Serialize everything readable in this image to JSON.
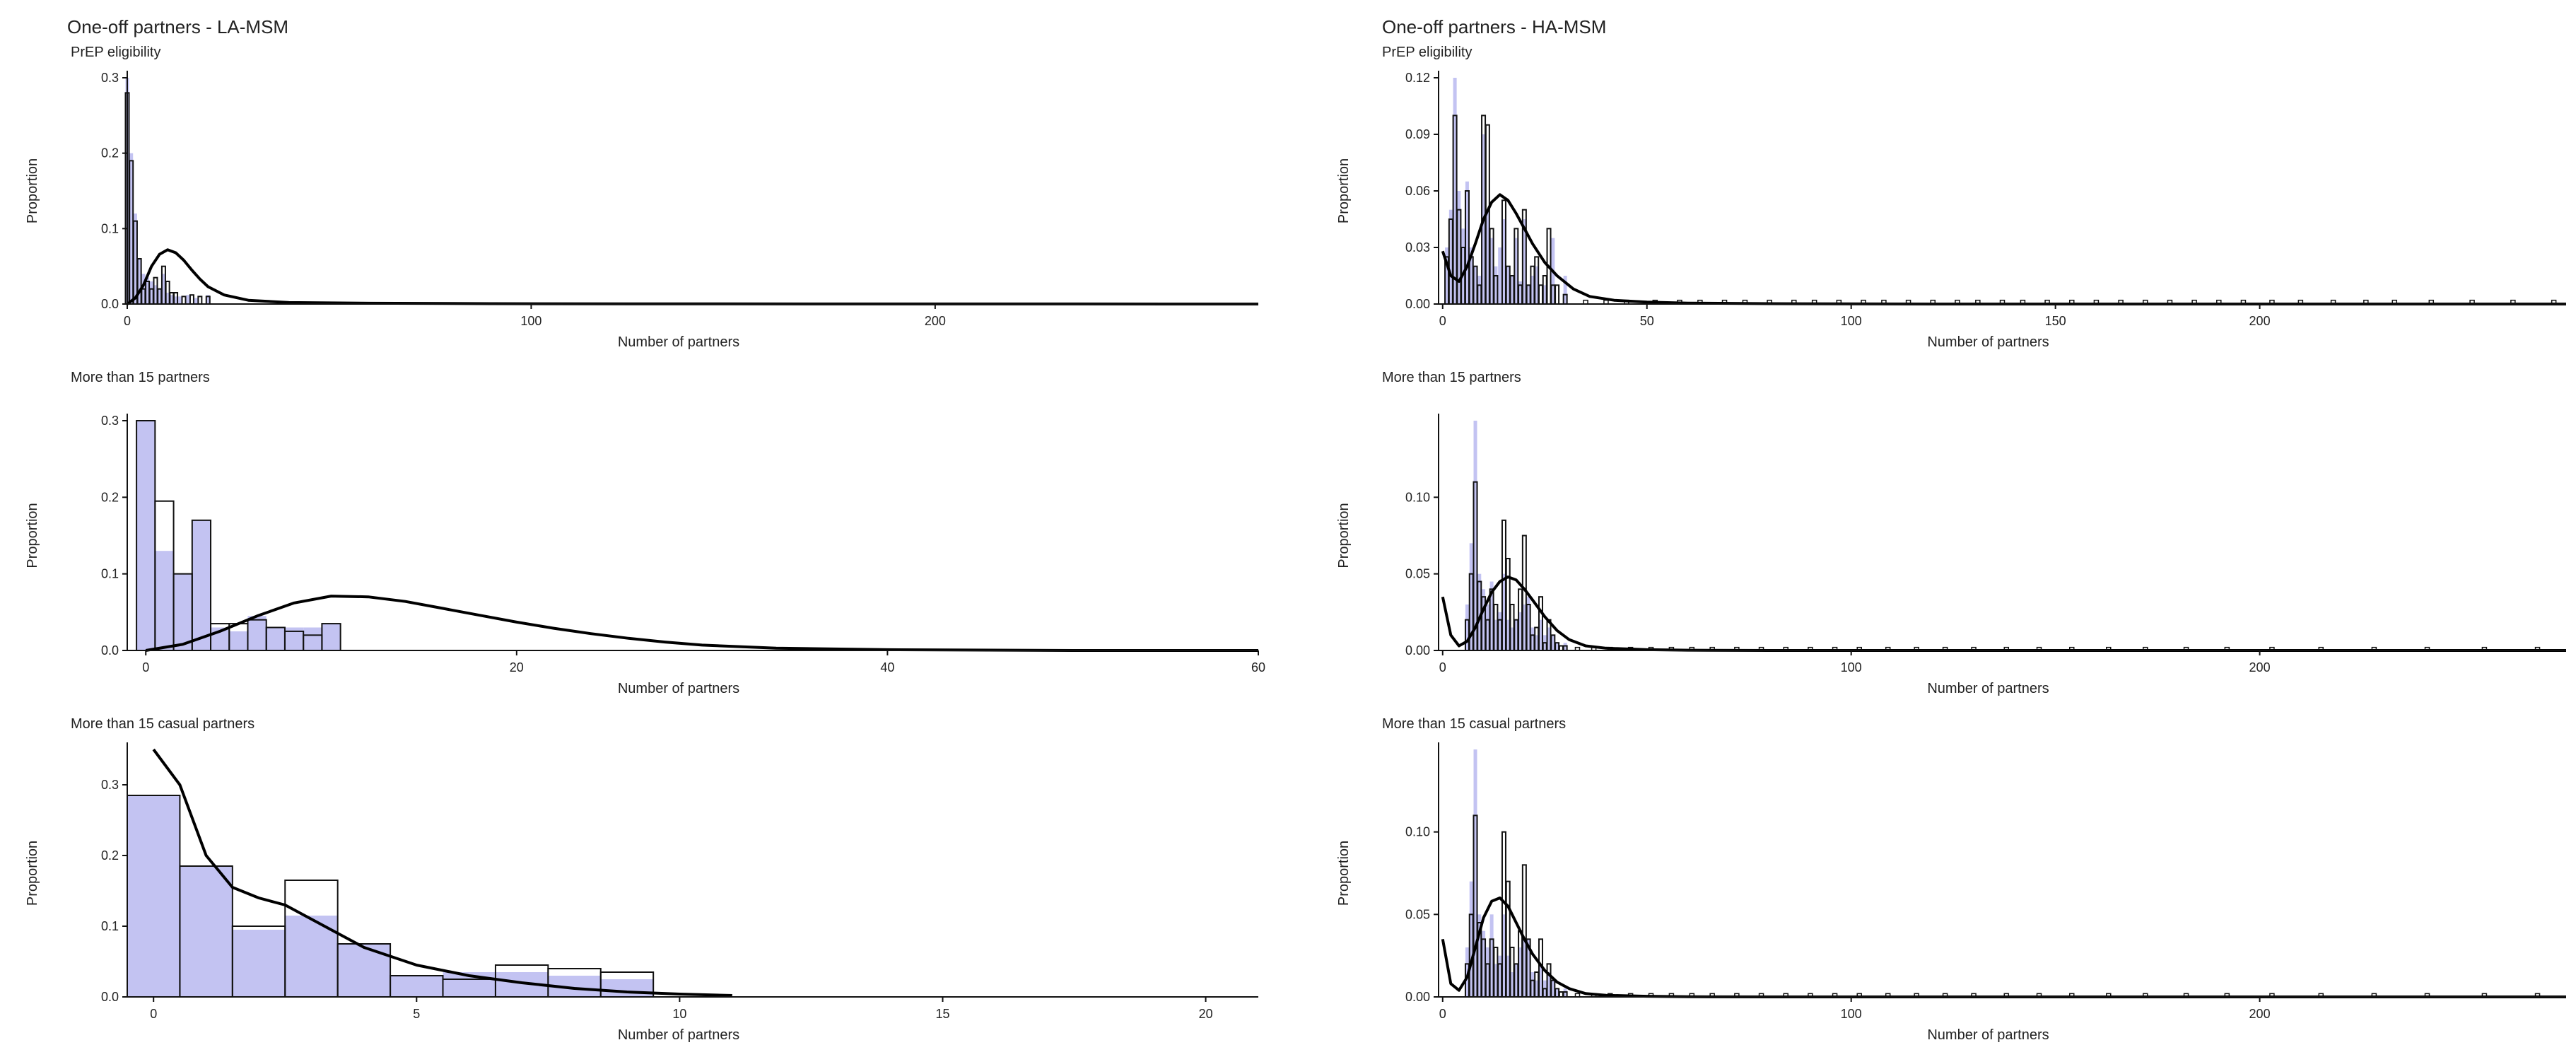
{
  "colors": {
    "bar_fill": "#c3c3f2",
    "outline": "#111111",
    "curve": "#000000",
    "axis": "#111111",
    "text": "#222222"
  },
  "titles": {
    "left": "One-off partners - LA-MSM",
    "right": "One-off partners - HA-MSM"
  },
  "chart_data": [
    {
      "id": "la-prep",
      "type": "bar",
      "subtitle": "PrEP eligibility",
      "xlabel": "Number of partners",
      "ylabel": "Proportion",
      "xlim": [
        0,
        280
      ],
      "ylim": [
        0,
        0.3
      ],
      "xticks": [
        0,
        100,
        200
      ],
      "xtick_labels": [
        "0",
        "100",
        "200"
      ],
      "yticks": [
        0,
        0.1,
        0.2,
        0.3
      ],
      "ytick_labels": [
        "0.0",
        "0.1",
        "0.2",
        "0.3"
      ],
      "grid": false,
      "binwidth": 1,
      "fill_bars": {
        "x": [
          0,
          1,
          2,
          3,
          4,
          5,
          6,
          7,
          8,
          9,
          10,
          11,
          12,
          13,
          15,
          17,
          20
        ],
        "y": [
          0.3,
          0.2,
          0.12,
          0.06,
          0.04,
          0.035,
          0.03,
          0.025,
          0.02,
          0.04,
          0.015,
          0.012,
          0.01,
          0.01,
          0.012,
          0.008,
          0.012
        ]
      },
      "outline_bars": {
        "x": [
          0,
          1,
          2,
          3,
          4,
          5,
          6,
          7,
          8,
          9,
          10,
          11,
          12,
          14,
          16,
          18,
          20
        ],
        "y": [
          0.28,
          0.19,
          0.11,
          0.06,
          0.02,
          0.03,
          0.02,
          0.035,
          0.02,
          0.05,
          0.03,
          0.015,
          0.015,
          0.01,
          0.012,
          0.01,
          0.01
        ]
      },
      "curve": {
        "x": [
          0,
          2,
          4,
          6,
          8,
          10,
          12,
          14,
          16,
          18,
          20,
          24,
          30,
          40,
          60,
          90,
          140,
          280
        ],
        "y": [
          0.0,
          0.008,
          0.025,
          0.05,
          0.066,
          0.072,
          0.068,
          0.058,
          0.045,
          0.033,
          0.023,
          0.012,
          0.005,
          0.002,
          0.001,
          0.0005,
          0.0002,
          0.0
        ]
      }
    },
    {
      "id": "la-15",
      "type": "bar",
      "subtitle": "More than 15 partners",
      "xlabel": "Number of partners",
      "ylabel": "Proportion",
      "xlim": [
        -1,
        60
      ],
      "ylim": [
        0,
        0.3
      ],
      "xticks": [
        0,
        20,
        40,
        60
      ],
      "xtick_labels": [
        "0",
        "20",
        "40",
        "60"
      ],
      "yticks": [
        0,
        0.1,
        0.2,
        0.3
      ],
      "ytick_labels": [
        "0.0",
        "0.1",
        "0.2",
        "0.3"
      ],
      "grid": false,
      "binwidth": 1,
      "fill_bars": {
        "x": [
          0,
          1,
          2,
          3,
          4,
          5,
          6,
          7,
          8,
          9,
          10
        ],
        "y": [
          0.3,
          0.13,
          0.1,
          0.17,
          0.03,
          0.025,
          0.045,
          0.03,
          0.03,
          0.03,
          0.035
        ]
      },
      "outline_bars": {
        "x": [
          0,
          1,
          2,
          3,
          4,
          5,
          6,
          7,
          8,
          9,
          10
        ],
        "y": [
          0.3,
          0.195,
          0.1,
          0.17,
          0.035,
          0.035,
          0.04,
          0.03,
          0.025,
          0.02,
          0.035
        ]
      },
      "curve": {
        "x": [
          0,
          2,
          4,
          6,
          8,
          10,
          12,
          14,
          16,
          18,
          20,
          22,
          24,
          26,
          28,
          30,
          34,
          40,
          50,
          60
        ],
        "y": [
          0.0,
          0.008,
          0.025,
          0.045,
          0.062,
          0.071,
          0.07,
          0.064,
          0.055,
          0.046,
          0.037,
          0.029,
          0.022,
          0.016,
          0.011,
          0.007,
          0.003,
          0.001,
          0.0,
          0.0
        ]
      }
    },
    {
      "id": "la-15c",
      "type": "bar",
      "subtitle": "More than 15 casual partners",
      "xlabel": "Number of partners",
      "ylabel": "Proportion",
      "xlim": [
        -0.5,
        21
      ],
      "ylim": [
        0,
        0.35
      ],
      "xticks": [
        0,
        5,
        10,
        15,
        20
      ],
      "xtick_labels": [
        "0",
        "5",
        "10",
        "15",
        "20"
      ],
      "yticks": [
        0,
        0.1,
        0.2,
        0.3
      ],
      "ytick_labels": [
        "0.0",
        "0.1",
        "0.2",
        "0.3"
      ],
      "grid": false,
      "binwidth": 1,
      "fill_bars": {
        "x": [
          0,
          1,
          2,
          3,
          4,
          5,
          6,
          7,
          8,
          9
        ],
        "y": [
          0.285,
          0.185,
          0.095,
          0.115,
          0.075,
          0.03,
          0.035,
          0.035,
          0.03,
          0.025
        ]
      },
      "outline_bars": {
        "x": [
          0,
          1,
          2,
          3,
          4,
          5,
          6,
          7,
          8,
          9
        ],
        "y": [
          0.285,
          0.185,
          0.1,
          0.165,
          0.075,
          0.03,
          0.025,
          0.045,
          0.04,
          0.035
        ]
      },
      "curve": {
        "x": [
          0,
          0.5,
          1,
          1.5,
          2,
          2.5,
          3,
          3.5,
          4,
          5,
          6,
          7,
          8,
          9,
          10,
          11
        ],
        "y": [
          0.35,
          0.3,
          0.2,
          0.155,
          0.14,
          0.13,
          0.11,
          0.09,
          0.07,
          0.045,
          0.03,
          0.02,
          0.012,
          0.007,
          0.004,
          0.002
        ]
      }
    },
    {
      "id": "ha-prep",
      "type": "bar",
      "subtitle": "PrEP eligibility",
      "xlabel": "Number of partners",
      "ylabel": "Proportion",
      "xlim": [
        -1,
        275
      ],
      "ylim": [
        0,
        0.12
      ],
      "xticks": [
        0,
        50,
        100,
        150,
        200
      ],
      "xtick_labels": [
        "0",
        "50",
        "100",
        "150",
        "200"
      ],
      "yticks": [
        0,
        0.03,
        0.06,
        0.09,
        0.12
      ],
      "ytick_labels": [
        "0.00",
        "0.03",
        "0.06",
        "0.09",
        "0.12"
      ],
      "grid": false,
      "binwidth": 1,
      "fill_bars": {
        "x": [
          1,
          2,
          3,
          4,
          5,
          6,
          7,
          8,
          9,
          10,
          11,
          12,
          13,
          14,
          15,
          16,
          17,
          18,
          19,
          20,
          21,
          22,
          23,
          25,
          27,
          30
        ],
        "y": [
          0.03,
          0.05,
          0.12,
          0.06,
          0.04,
          0.065,
          0.03,
          0.02,
          0.015,
          0.09,
          0.05,
          0.035,
          0.02,
          0.03,
          0.045,
          0.02,
          0.015,
          0.035,
          0.012,
          0.045,
          0.01,
          0.015,
          0.02,
          0.01,
          0.035,
          0.015
        ]
      },
      "outline_bars": {
        "x": [
          1,
          2,
          3,
          4,
          5,
          6,
          7,
          8,
          9,
          10,
          11,
          12,
          13,
          15,
          16,
          17,
          18,
          19,
          20,
          21,
          22,
          23,
          24,
          25,
          26,
          27,
          28,
          30
        ],
        "y": [
          0.025,
          0.045,
          0.1,
          0.05,
          0.03,
          0.06,
          0.025,
          0.02,
          0.01,
          0.1,
          0.095,
          0.04,
          0.015,
          0.055,
          0.02,
          0.015,
          0.04,
          0.01,
          0.05,
          0.01,
          0.02,
          0.025,
          0.01,
          0.015,
          0.04,
          0.01,
          0.01,
          0.005
        ]
      },
      "sparse_x": [
        35,
        40,
        45,
        52,
        58,
        63,
        69,
        74,
        80,
        86,
        91,
        97,
        103,
        108,
        114,
        120,
        126,
        131,
        137,
        142,
        148,
        154,
        160,
        166,
        172,
        178,
        184,
        190,
        196,
        203,
        210,
        218,
        226,
        233,
        242,
        252,
        262,
        272
      ],
      "sparse_y": 0.002,
      "curve": {
        "x": [
          0,
          2,
          4,
          6,
          8,
          10,
          12,
          14,
          16,
          18,
          20,
          22,
          25,
          28,
          32,
          36,
          42,
          50,
          60,
          80,
          120,
          275
        ],
        "y": [
          0.028,
          0.015,
          0.012,
          0.02,
          0.032,
          0.045,
          0.054,
          0.058,
          0.055,
          0.048,
          0.04,
          0.032,
          0.022,
          0.015,
          0.008,
          0.004,
          0.002,
          0.001,
          0.0005,
          0.0002,
          0.0,
          0.0
        ]
      }
    },
    {
      "id": "ha-15",
      "type": "bar",
      "subtitle": "More than 15 partners",
      "xlabel": "Number of partners",
      "ylabel": "Proportion",
      "xlim": [
        -1,
        275
      ],
      "ylim": [
        0,
        0.15
      ],
      "xticks": [
        0,
        100,
        200
      ],
      "xtick_labels": [
        "0",
        "100",
        "200"
      ],
      "yticks": [
        0,
        0.05,
        0.1
      ],
      "ytick_labels": [
        "0.00",
        "0.05",
        "0.10"
      ],
      "grid": false,
      "binwidth": 1,
      "fill_bars": {
        "x": [
          6,
          7,
          8,
          9,
          10,
          11,
          12,
          13,
          14,
          15,
          16,
          17,
          18,
          19,
          20,
          21,
          22,
          23,
          24,
          25,
          26,
          27,
          28,
          30
        ],
        "y": [
          0.03,
          0.07,
          0.15,
          0.05,
          0.04,
          0.03,
          0.045,
          0.02,
          0.025,
          0.05,
          0.02,
          0.015,
          0.02,
          0.025,
          0.03,
          0.035,
          0.015,
          0.01,
          0.02,
          0.01,
          0.015,
          0.01,
          0.005,
          0.005
        ]
      },
      "outline_bars": {
        "x": [
          6,
          7,
          8,
          9,
          10,
          11,
          12,
          13,
          14,
          15,
          16,
          17,
          18,
          19,
          20,
          21,
          22,
          23,
          24,
          25,
          26,
          27,
          28,
          29,
          30
        ],
        "y": [
          0.02,
          0.05,
          0.11,
          0.045,
          0.035,
          0.02,
          0.04,
          0.03,
          0.02,
          0.085,
          0.06,
          0.03,
          0.02,
          0.04,
          0.075,
          0.03,
          0.01,
          0.015,
          0.035,
          0.005,
          0.02,
          0.01,
          0.005,
          0.003,
          0.003
        ]
      },
      "sparse_x": [
        33,
        37,
        41,
        46,
        51,
        56,
        61,
        66,
        72,
        78,
        84,
        90,
        96,
        102,
        109,
        116,
        123,
        130,
        138,
        146,
        154,
        163,
        172,
        182,
        192,
        203,
        215,
        228,
        241,
        255,
        268
      ],
      "sparse_y": 0.002,
      "curve": {
        "x": [
          0,
          2,
          4,
          6,
          8,
          10,
          12,
          14,
          16,
          18,
          20,
          22,
          25,
          28,
          31,
          35,
          40,
          50,
          60,
          80,
          120,
          275
        ],
        "y": [
          0.035,
          0.01,
          0.003,
          0.006,
          0.015,
          0.027,
          0.038,
          0.045,
          0.048,
          0.046,
          0.04,
          0.033,
          0.022,
          0.013,
          0.007,
          0.003,
          0.0015,
          0.0005,
          0.0002,
          0.0,
          0.0,
          0.0
        ]
      }
    },
    {
      "id": "ha-15c",
      "type": "bar",
      "subtitle": "More than 15 casual partners",
      "xlabel": "Number of partners",
      "ylabel": "Proportion",
      "xlim": [
        -1,
        275
      ],
      "ylim": [
        0,
        0.15
      ],
      "xticks": [
        0,
        100,
        200
      ],
      "xtick_labels": [
        "0",
        "100",
        "200"
      ],
      "yticks": [
        0,
        0.05,
        0.1
      ],
      "ytick_labels": [
        "0.00",
        "0.05",
        "0.10"
      ],
      "grid": false,
      "binwidth": 1,
      "fill_bars": {
        "x": [
          6,
          7,
          8,
          9,
          10,
          11,
          12,
          13,
          14,
          15,
          16,
          17,
          18,
          19,
          20,
          21,
          22,
          23,
          24,
          25,
          26,
          27,
          28,
          30
        ],
        "y": [
          0.03,
          0.07,
          0.15,
          0.05,
          0.04,
          0.03,
          0.05,
          0.02,
          0.025,
          0.05,
          0.025,
          0.015,
          0.02,
          0.03,
          0.035,
          0.035,
          0.015,
          0.01,
          0.02,
          0.01,
          0.015,
          0.01,
          0.005,
          0.005
        ]
      },
      "outline_bars": {
        "x": [
          6,
          7,
          8,
          9,
          10,
          11,
          12,
          13,
          14,
          15,
          16,
          17,
          18,
          19,
          20,
          21,
          22,
          23,
          24,
          25,
          26,
          27,
          28,
          29,
          30
        ],
        "y": [
          0.02,
          0.05,
          0.11,
          0.045,
          0.035,
          0.02,
          0.035,
          0.03,
          0.02,
          0.1,
          0.07,
          0.03,
          0.02,
          0.04,
          0.08,
          0.035,
          0.01,
          0.015,
          0.035,
          0.005,
          0.02,
          0.01,
          0.005,
          0.003,
          0.003
        ]
      },
      "sparse_x": [
        33,
        37,
        41,
        46,
        51,
        56,
        61,
        66,
        72,
        78,
        84,
        90,
        96,
        102,
        109,
        116,
        123,
        130,
        138,
        146,
        154,
        163,
        172,
        182,
        192,
        203,
        215,
        228,
        241,
        255,
        268
      ],
      "sparse_y": 0.002,
      "curve": {
        "x": [
          0,
          2,
          4,
          6,
          8,
          10,
          12,
          14,
          16,
          18,
          20,
          22,
          25,
          28,
          31,
          35,
          40,
          50,
          60,
          80,
          120,
          275
        ],
        "y": [
          0.035,
          0.008,
          0.004,
          0.012,
          0.03,
          0.048,
          0.058,
          0.06,
          0.055,
          0.045,
          0.035,
          0.026,
          0.016,
          0.009,
          0.005,
          0.002,
          0.001,
          0.0004,
          0.0001,
          0.0,
          0.0,
          0.0
        ]
      }
    }
  ]
}
